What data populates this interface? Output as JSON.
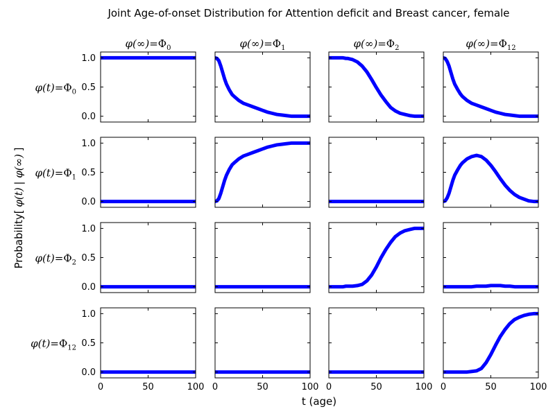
{
  "chart_data": {
    "type": "line",
    "title": "Joint Age-of-onset Distribution for Attention deficit and Breast cancer, female",
    "xlabel": "t (age)",
    "ylabel": {
      "prefix": "Probability[",
      "phi_t": "φ(t)",
      "bar": " | ",
      "phi_inf": "φ(∞)",
      "suffix": " ]"
    },
    "column_labels": [
      {
        "lhs": "φ(∞)",
        "eq": "=",
        "base": "Φ",
        "sub": "0"
      },
      {
        "lhs": "φ(∞)",
        "eq": "=",
        "base": "Φ",
        "sub": "1"
      },
      {
        "lhs": "φ(∞)",
        "eq": "=",
        "base": "Φ",
        "sub": "2"
      },
      {
        "lhs": "φ(∞)",
        "eq": "=",
        "base": "Φ",
        "sub": "12"
      }
    ],
    "row_labels": [
      {
        "lhs": "φ(t)",
        "eq": "=",
        "base": "Φ",
        "sub": "0"
      },
      {
        "lhs": "φ(t)",
        "eq": "=",
        "base": "Φ",
        "sub": "1"
      },
      {
        "lhs": "φ(t)",
        "eq": "=",
        "base": "Φ",
        "sub": "2"
      },
      {
        "lhs": "φ(t)",
        "eq": "=",
        "base": "Φ",
        "sub": "12"
      }
    ],
    "x_ticks": [
      0,
      50,
      100
    ],
    "x_tick_labels": [
      "0",
      "50",
      "100"
    ],
    "y_ticks": [
      0,
      0.5,
      1
    ],
    "y_tick_labels": [
      "0.0",
      "0.5",
      "1.0"
    ],
    "xlim": [
      0,
      100
    ],
    "ylim": [
      -0.1,
      1.1
    ],
    "grid": false,
    "line_color": "#0000ff",
    "x": [
      0,
      2,
      4,
      6,
      8,
      10,
      12,
      15,
      18,
      20,
      25,
      30,
      35,
      40,
      45,
      50,
      55,
      60,
      65,
      70,
      75,
      80,
      85,
      90,
      95,
      100
    ],
    "panels": [
      [
        {
          "values": [
            1,
            1,
            1,
            1,
            1,
            1,
            1,
            1,
            1,
            1,
            1,
            1,
            1,
            1,
            1,
            1,
            1,
            1,
            1,
            1,
            1,
            1,
            1,
            1,
            1,
            1
          ]
        },
        {
          "values": [
            1,
            0.99,
            0.95,
            0.86,
            0.75,
            0.64,
            0.55,
            0.45,
            0.37,
            0.34,
            0.27,
            0.22,
            0.19,
            0.16,
            0.13,
            0.1,
            0.07,
            0.05,
            0.03,
            0.02,
            0.01,
            0,
            0,
            0,
            0,
            0
          ]
        },
        {
          "values": [
            1,
            1,
            1,
            1,
            1,
            1,
            1,
            1,
            0.99,
            0.99,
            0.97,
            0.93,
            0.86,
            0.76,
            0.63,
            0.49,
            0.36,
            0.25,
            0.15,
            0.09,
            0.05,
            0.03,
            0.01,
            0,
            0,
            0
          ]
        },
        {
          "values": [
            1,
            0.99,
            0.94,
            0.86,
            0.75,
            0.64,
            0.55,
            0.46,
            0.38,
            0.34,
            0.27,
            0.22,
            0.19,
            0.16,
            0.13,
            0.1,
            0.07,
            0.05,
            0.03,
            0.02,
            0.01,
            0,
            0,
            0,
            0,
            0
          ]
        }
      ],
      [
        {
          "values": [
            0,
            0,
            0,
            0,
            0,
            0,
            0,
            0,
            0,
            0,
            0,
            0,
            0,
            0,
            0,
            0,
            0,
            0,
            0,
            0,
            0,
            0,
            0,
            0,
            0,
            0
          ]
        },
        {
          "values": [
            0,
            0.01,
            0.05,
            0.14,
            0.25,
            0.36,
            0.45,
            0.55,
            0.63,
            0.66,
            0.73,
            0.78,
            0.81,
            0.84,
            0.87,
            0.9,
            0.93,
            0.95,
            0.97,
            0.98,
            0.99,
            1,
            1,
            1,
            1,
            1
          ]
        },
        {
          "values": [
            0,
            0,
            0,
            0,
            0,
            0,
            0,
            0,
            0,
            0,
            0,
            0,
            0,
            0,
            0,
            0,
            0,
            0,
            0,
            0,
            0,
            0,
            0,
            0,
            0,
            0
          ]
        },
        {
          "values": [
            0,
            0.01,
            0.06,
            0.14,
            0.25,
            0.36,
            0.45,
            0.54,
            0.62,
            0.66,
            0.73,
            0.77,
            0.79,
            0.77,
            0.71,
            0.62,
            0.51,
            0.39,
            0.28,
            0.19,
            0.12,
            0.07,
            0.04,
            0.01,
            0,
            0
          ]
        }
      ],
      [
        {
          "values": [
            0,
            0,
            0,
            0,
            0,
            0,
            0,
            0,
            0,
            0,
            0,
            0,
            0,
            0,
            0,
            0,
            0,
            0,
            0,
            0,
            0,
            0,
            0,
            0,
            0,
            0
          ]
        },
        {
          "values": [
            0,
            0,
            0,
            0,
            0,
            0,
            0,
            0,
            0,
            0,
            0,
            0,
            0,
            0,
            0,
            0,
            0,
            0,
            0,
            0,
            0,
            0,
            0,
            0,
            0,
            0
          ]
        },
        {
          "values": [
            0,
            0,
            0,
            0,
            0,
            0,
            0,
            0,
            0.01,
            0.01,
            0.01,
            0.02,
            0.04,
            0.1,
            0.2,
            0.34,
            0.5,
            0.64,
            0.76,
            0.86,
            0.92,
            0.96,
            0.98,
            1,
            1,
            1
          ]
        },
        {
          "values": [
            0,
            0,
            0,
            0,
            0,
            0,
            0,
            0,
            0,
            0,
            0,
            0,
            0.01,
            0.01,
            0.01,
            0.02,
            0.02,
            0.02,
            0.01,
            0.01,
            0,
            0,
            0,
            0,
            0,
            0
          ]
        }
      ],
      [
        {
          "values": [
            0,
            0,
            0,
            0,
            0,
            0,
            0,
            0,
            0,
            0,
            0,
            0,
            0,
            0,
            0,
            0,
            0,
            0,
            0,
            0,
            0,
            0,
            0,
            0,
            0,
            0
          ]
        },
        {
          "values": [
            0,
            0,
            0,
            0,
            0,
            0,
            0,
            0,
            0,
            0,
            0,
            0,
            0,
            0,
            0,
            0,
            0,
            0,
            0,
            0,
            0,
            0,
            0,
            0,
            0,
            0
          ]
        },
        {
          "values": [
            0,
            0,
            0,
            0,
            0,
            0,
            0,
            0,
            0,
            0,
            0,
            0,
            0,
            0,
            0,
            0,
            0,
            0,
            0,
            0,
            0,
            0,
            0,
            0,
            0,
            0
          ]
        },
        {
          "values": [
            0,
            0,
            0,
            0,
            0,
            0,
            0,
            0,
            0,
            0,
            0,
            0.01,
            0.02,
            0.06,
            0.16,
            0.3,
            0.46,
            0.61,
            0.73,
            0.83,
            0.9,
            0.94,
            0.97,
            0.99,
            1,
            1
          ]
        }
      ]
    ]
  }
}
